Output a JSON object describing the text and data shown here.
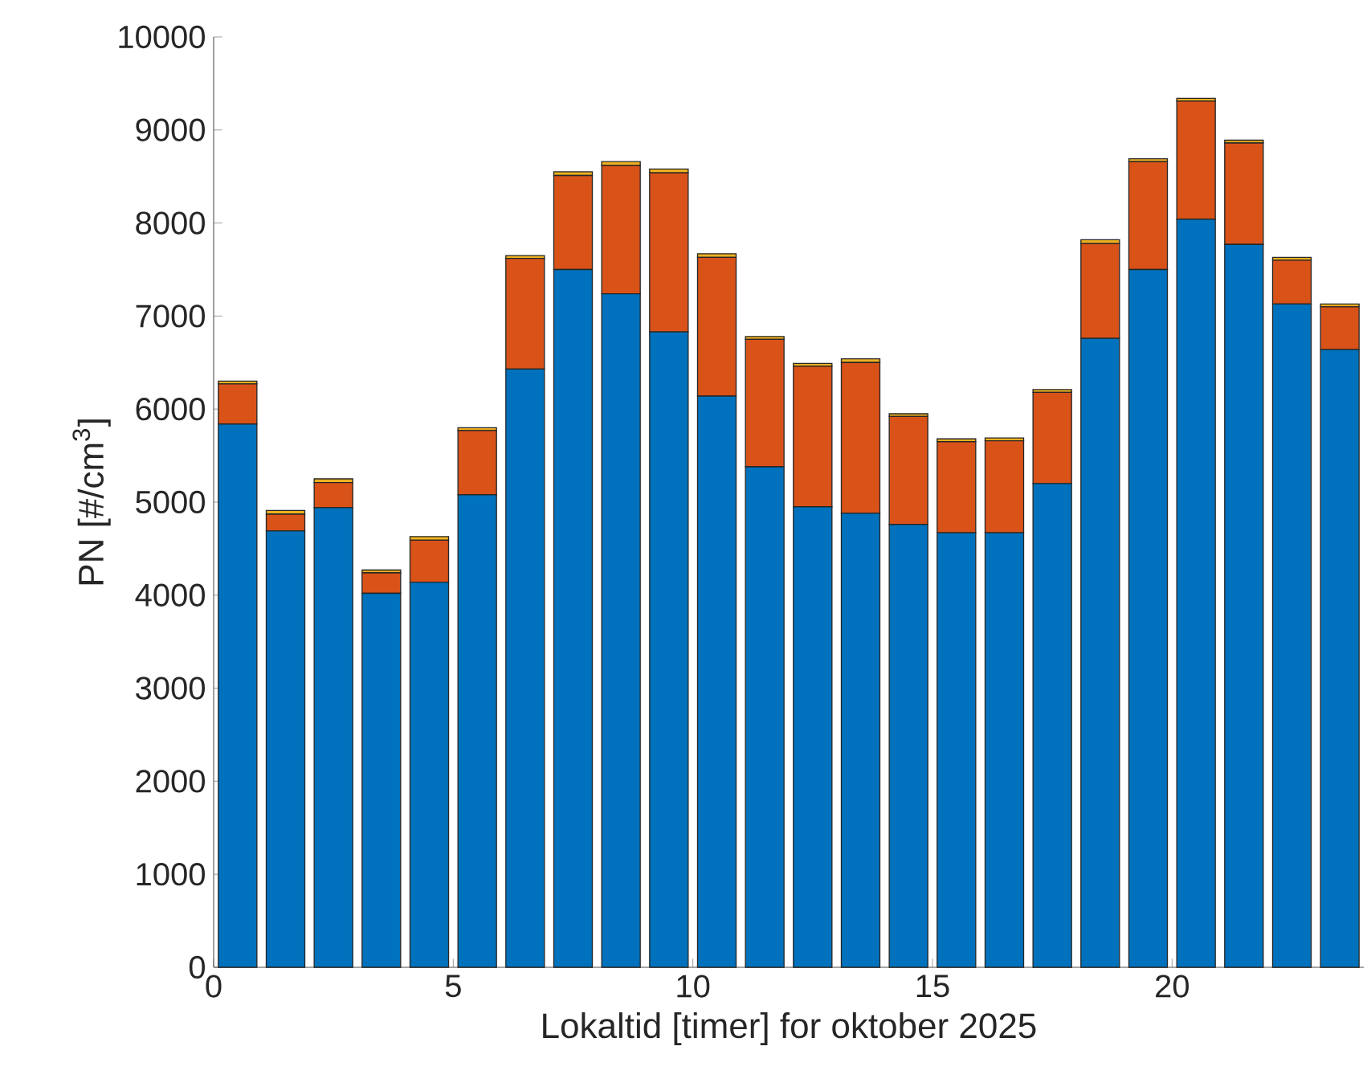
{
  "chart_data": {
    "type": "bar",
    "stacked": true,
    "xlabel": "Lokaltid [timer] for oktober 2025",
    "ylabel": "PN [#/cm$^{3}$]",
    "x": [
      0.5,
      1.5,
      2.5,
      3.5,
      4.5,
      5.5,
      6.5,
      7.5,
      8.5,
      9.5,
      10.5,
      11.5,
      12.5,
      13.5,
      14.5,
      15.5,
      16.5,
      17.5,
      18.5,
      19.5,
      20.5,
      21.5,
      22.5,
      23.5
    ],
    "series": [
      {
        "color": "#0072bd",
        "values": [
          5840,
          4690,
          4940,
          4020,
          4140,
          5080,
          6430,
          7500,
          7240,
          6830,
          6140,
          5380,
          4950,
          4880,
          4760,
          4670,
          4670,
          5200,
          6760,
          7500,
          8040,
          7770,
          7130,
          6640
        ]
      },
      {
        "color": "#d95319",
        "values": [
          430,
          180,
          270,
          220,
          450,
          690,
          1190,
          1010,
          1380,
          1710,
          1490,
          1370,
          1510,
          1620,
          1160,
          980,
          990,
          980,
          1020,
          1160,
          1270,
          1090,
          470,
          460
        ]
      },
      {
        "color": "#edb120",
        "values": [
          30,
          40,
          40,
          30,
          40,
          30,
          30,
          40,
          40,
          40,
          40,
          30,
          30,
          40,
          30,
          30,
          30,
          30,
          40,
          30,
          30,
          30,
          30,
          30
        ]
      }
    ],
    "xlim": [
      0,
      24
    ],
    "ylim": [
      0,
      10000
    ],
    "xticks": [
      0,
      5,
      10,
      15,
      20
    ],
    "yticks": [
      0,
      1000,
      2000,
      3000,
      4000,
      5000,
      6000,
      7000,
      8000,
      9000,
      10000
    ]
  }
}
